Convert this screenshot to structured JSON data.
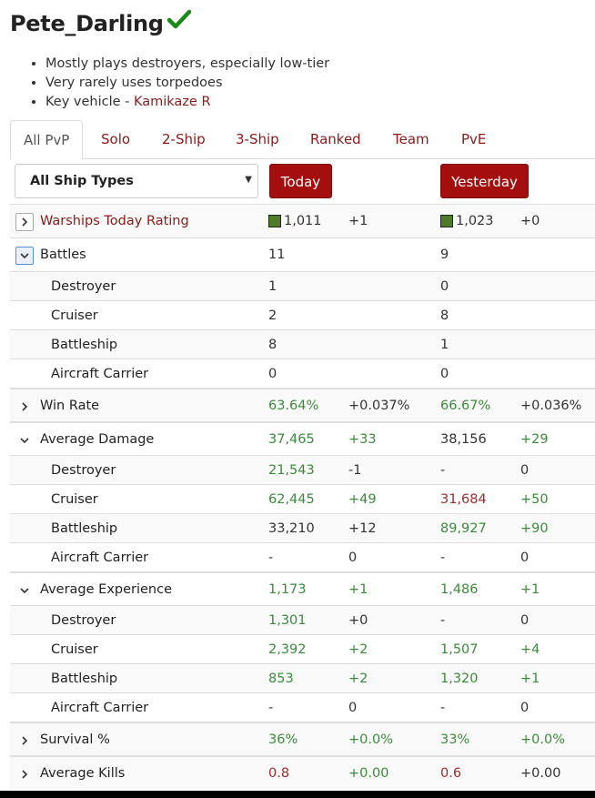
{
  "player": {
    "name": "Pete_Darling"
  },
  "notes": [
    "Mostly plays destroyers, especially low-tier",
    "Very rarely uses torpedoes",
    "Key vehicle - "
  ],
  "key_vehicle": "Kamikaze R",
  "tabs": [
    "All PvP",
    "Solo",
    "2-Ship",
    "3-Ship",
    "Ranked",
    "Team",
    "PvE"
  ],
  "active_tab": "All PvP",
  "filter": {
    "selected": "All Ship Types"
  },
  "periods": {
    "today": "Today",
    "yesterday": "Yesterday"
  },
  "colors": {
    "accent": "#a50e0e",
    "link": "#8b1a1a",
    "good": "#3c8a3c",
    "bad": "#a02b2b"
  },
  "stats": {
    "rating": {
      "label": "Warships Today Rating",
      "today": "1,011",
      "today_delta": "+1",
      "yesterday": "1,023",
      "yesterday_delta": "+0"
    },
    "battles": {
      "label": "Battles",
      "today": "11",
      "yesterday": "9",
      "rows": [
        {
          "label": "Destroyer",
          "today": "1",
          "yesterday": "0"
        },
        {
          "label": "Cruiser",
          "today": "2",
          "yesterday": "8"
        },
        {
          "label": "Battleship",
          "today": "8",
          "yesterday": "1"
        },
        {
          "label": "Aircraft Carrier",
          "today": "0",
          "yesterday": "0"
        }
      ]
    },
    "winrate": {
      "label": "Win Rate",
      "today": "63.64%",
      "today_delta": "+0.037%",
      "yesterday": "66.67%",
      "yesterday_delta": "+0.036%"
    },
    "damage": {
      "label": "Average Damage",
      "today": "37,465",
      "today_delta": "+33",
      "yesterday": "38,156",
      "yesterday_delta": "+29",
      "rows": [
        {
          "label": "Destroyer",
          "today": "21,543",
          "today_delta": "-1",
          "yesterday": "-",
          "yesterday_delta": "0"
        },
        {
          "label": "Cruiser",
          "today": "62,445",
          "today_delta": "+49",
          "yesterday": "31,684",
          "yesterday_delta": "+50"
        },
        {
          "label": "Battleship",
          "today": "33,210",
          "today_delta": "+12",
          "yesterday": "89,927",
          "yesterday_delta": "+90"
        },
        {
          "label": "Aircraft Carrier",
          "today": "-",
          "today_delta": "0",
          "yesterday": "-",
          "yesterday_delta": "0"
        }
      ]
    },
    "experience": {
      "label": "Average Experience",
      "today": "1,173",
      "today_delta": "+1",
      "yesterday": "1,486",
      "yesterday_delta": "+1",
      "rows": [
        {
          "label": "Destroyer",
          "today": "1,301",
          "today_delta": "+0",
          "yesterday": "-",
          "yesterday_delta": "0"
        },
        {
          "label": "Cruiser",
          "today": "2,392",
          "today_delta": "+2",
          "yesterday": "1,507",
          "yesterday_delta": "+4"
        },
        {
          "label": "Battleship",
          "today": "853",
          "today_delta": "+2",
          "yesterday": "1,320",
          "yesterday_delta": "+1"
        },
        {
          "label": "Aircraft Carrier",
          "today": "-",
          "today_delta": "0",
          "yesterday": "-",
          "yesterday_delta": "0"
        }
      ]
    },
    "survival": {
      "label": "Survival %",
      "today": "36%",
      "today_delta": "+0.0%",
      "yesterday": "33%",
      "yesterday_delta": "+0.0%"
    },
    "kills": {
      "label": "Average Kills",
      "today": "0.8",
      "today_delta": "+0.00",
      "yesterday": "0.6",
      "yesterday_delta": "+0.00"
    }
  }
}
